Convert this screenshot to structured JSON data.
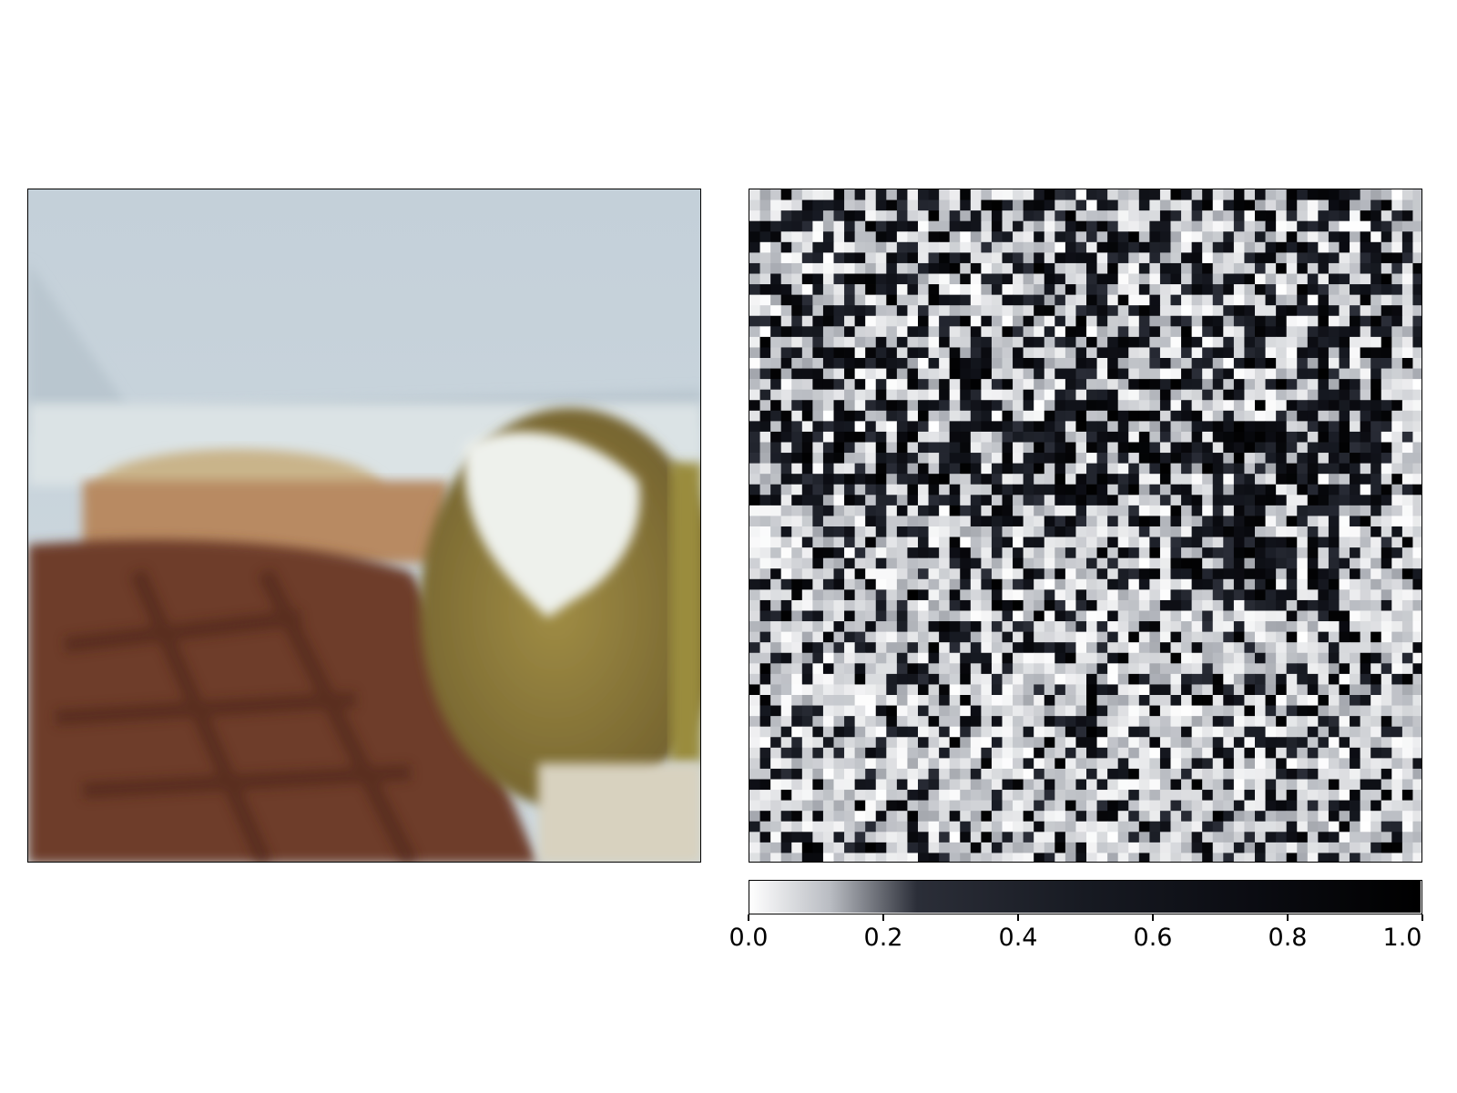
{
  "chart_data": [
    {
      "type": "image",
      "subject": "steak with baked potato and sour cream on a white plate",
      "colors": {
        "background": "#c9d6de",
        "plate": "#dde5e6",
        "steak": "#6e3d2c",
        "potato": "#8b7a3a",
        "sour_cream": "#f0f2ef",
        "garnish": "#b6a64a"
      }
    },
    {
      "type": "heatmap",
      "colormap": "bone_r",
      "rows": 64,
      "cols": 64,
      "range": [
        0.0,
        1.0
      ],
      "dark_regions": [
        "upper band (plate edge / background)",
        "baked potato upper right"
      ],
      "light_regions": [
        "lower half (steak)",
        "right edge"
      ],
      "colorbar": {
        "orientation": "horizontal",
        "ticks": [
          "0.0",
          "0.2",
          "0.4",
          "0.6",
          "0.8",
          "1.0"
        ],
        "tick_values": [
          0.0,
          0.2,
          0.4,
          0.6,
          0.8,
          1.0
        ]
      }
    }
  ]
}
